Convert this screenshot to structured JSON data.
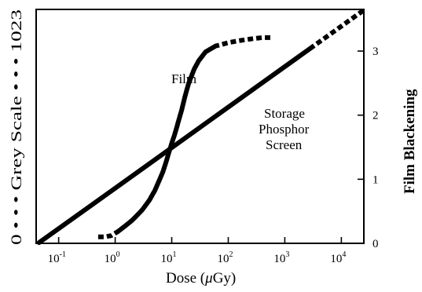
{
  "chart_data": {
    "type": "line",
    "xlabel_prefix": "Dose (",
    "xlabel_mu": "μ",
    "xlabel_suffix": "Gy)",
    "left_ylabel": "0 • • • Grey Scale • • • 1023",
    "right_ylabel": "Film Blackening",
    "x_scale": "log",
    "xlim": [
      0.04,
      25000
    ],
    "x_ticks": [
      {
        "base": "10",
        "exp": "-1",
        "value": 0.1
      },
      {
        "base": "10",
        "exp": "0",
        "value": 1
      },
      {
        "base": "10",
        "exp": "1",
        "value": 10
      },
      {
        "base": "10",
        "exp": "2",
        "value": 100
      },
      {
        "base": "10",
        "exp": "3",
        "value": 1000
      },
      {
        "base": "10",
        "exp": "4",
        "value": 10000
      }
    ],
    "right_ylim": [
      0,
      3.65
    ],
    "right_ticks": [
      "0",
      "1",
      "2",
      "3"
    ],
    "left_ylim": [
      0,
      1023
    ],
    "annotations": [
      {
        "id": "film",
        "text": "Film"
      },
      {
        "id": "phosphor1",
        "text": "Storage"
      },
      {
        "id": "phosphor2",
        "text": "Phosphor"
      },
      {
        "id": "phosphor3",
        "text": "Screen"
      }
    ],
    "series": [
      {
        "id": "film",
        "axis": "right",
        "x": [
          0.5,
          0.65,
          0.85,
          1.1,
          1.5,
          2,
          3,
          4,
          5,
          6,
          7,
          8,
          9,
          10,
          11,
          12,
          13,
          14,
          15,
          17,
          20,
          25,
          30,
          40,
          60,
          100,
          150,
          250,
          400,
          600
        ],
        "y": [
          0.1,
          0.1,
          0.12,
          0.18,
          0.27,
          0.36,
          0.52,
          0.67,
          0.82,
          0.98,
          1.12,
          1.28,
          1.43,
          1.56,
          1.67,
          1.78,
          1.89,
          1.99,
          2.08,
          2.28,
          2.5,
          2.72,
          2.85,
          2.99,
          3.08,
          3.13,
          3.16,
          3.19,
          3.21,
          3.21
        ],
        "dashed_segments": [
          [
            0.5,
            1.1
          ],
          [
            60,
            600
          ]
        ]
      },
      {
        "id": "storage-phosphor-screen",
        "axis": "left",
        "x": [
          0.045,
          25000
        ],
        "y": [
          3,
          1020
        ],
        "dashed_segments": [
          [
            0.045,
            0.1
          ],
          [
            10000,
            25000
          ]
        ]
      }
    ]
  }
}
